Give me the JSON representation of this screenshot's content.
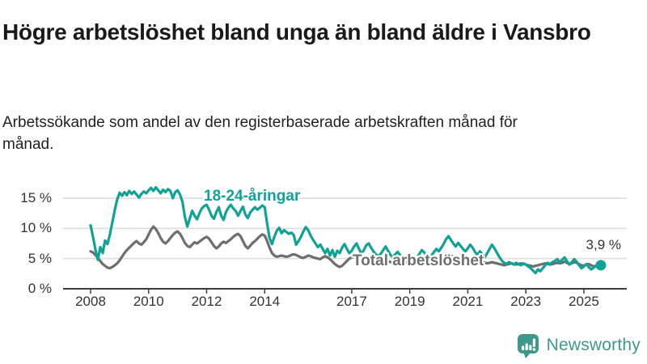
{
  "header": {
    "title": "Högre arbetslöshet bland unga än bland äldre i Vansbro",
    "subtitle": "Arbetssökande som andel av den registerbaserade arbetskraften månad för månad."
  },
  "annotation": {
    "latest_value_label": "3,9 %"
  },
  "branding": {
    "logo_text": "Newsworthy",
    "logo_icon": "bar-chart-speech-bubble-icon",
    "logo_color": "#3f988e"
  },
  "colors": {
    "young_series": "#10a296",
    "total_series": "#6e6e6e",
    "grid": "#dcdcdc",
    "axis": "#3c3c3c",
    "tick_text": "#333333",
    "title_text": "#1a1a1a"
  },
  "chart_data": {
    "type": "line",
    "frequency": "monthly",
    "x_start": "2008-01",
    "x_end": "2025-08",
    "unit": "%",
    "ylim": [
      0,
      17.5
    ],
    "grid": true,
    "yticks": [
      {
        "label": "0 %",
        "value": 0
      },
      {
        "label": "5 %",
        "value": 5
      },
      {
        "label": "10 %",
        "value": 10
      },
      {
        "label": "15 %",
        "value": 15
      }
    ],
    "xticks": [
      {
        "label": "2008",
        "year": 2008
      },
      {
        "label": "2010",
        "year": 2010
      },
      {
        "label": "2012",
        "year": 2012
      },
      {
        "label": "2014",
        "year": 2014
      },
      {
        "label": "2017",
        "year": 2017
      },
      {
        "label": "2019",
        "year": 2019
      },
      {
        "label": "2021",
        "year": 2021
      },
      {
        "label": "2023",
        "year": 2023
      },
      {
        "label": "2025",
        "year": 2025
      }
    ],
    "series": [
      {
        "name": "18-24-åringar",
        "color": "#10a296",
        "end_marker": true,
        "latest_value": 3.9,
        "values": [
          10.5,
          8.6,
          6.5,
          4.8,
          6.9,
          5.9,
          8.0,
          7.4,
          9.0,
          11.0,
          13.0,
          14.8,
          15.9,
          15.4,
          16.0,
          15.5,
          16.2,
          15.7,
          16.1,
          15.6,
          15.1,
          15.7,
          16.1,
          15.8,
          16.3,
          16.7,
          16.2,
          16.8,
          16.3,
          15.8,
          16.4,
          16.0,
          16.5,
          16.2,
          15.0,
          16.0,
          16.3,
          15.6,
          14.4,
          11.9,
          10.3,
          11.6,
          12.9,
          12.1,
          11.5,
          12.5,
          13.3,
          13.7,
          13.9,
          13.1,
          12.1,
          11.6,
          12.7,
          13.5,
          12.1,
          11.4,
          12.7,
          13.4,
          13.9,
          13.3,
          12.9,
          12.1,
          12.9,
          13.6,
          12.3,
          11.7,
          12.6,
          13.1,
          13.5,
          13.1,
          13.4,
          13.8,
          13.5,
          10.8,
          8.4,
          7.4,
          8.6,
          9.6,
          10.1,
          9.2,
          9.7,
          9.4,
          9.1,
          9.3,
          8.9,
          7.3,
          7.9,
          8.6,
          9.5,
          10.2,
          9.7,
          8.8,
          8.1,
          7.5,
          6.9,
          7.3,
          6.6,
          5.9,
          6.6,
          5.5,
          6.4,
          5.3,
          6.3,
          5.9,
          6.8,
          7.4,
          6.6,
          5.9,
          6.3,
          7.0,
          7.5,
          6.6,
          5.8,
          6.4,
          7.2,
          7.5,
          6.8,
          6.2,
          5.7,
          5.4,
          5.8,
          6.4,
          7.0,
          6.3,
          5.6,
          5.2,
          5.7,
          6.1,
          5.6,
          5.1,
          4.8,
          5.2,
          5.6,
          5.0,
          4.6,
          5.2,
          5.8,
          6.4,
          6.0,
          5.4,
          5.0,
          5.5,
          6.1,
          6.6,
          6.2,
          6.8,
          7.4,
          8.2,
          8.7,
          8.1,
          7.5,
          7.0,
          7.6,
          7.1,
          6.6,
          6.2,
          6.7,
          7.3,
          6.8,
          6.1,
          5.6,
          6.2,
          5.7,
          5.2,
          5.9,
          6.6,
          7.3,
          6.7,
          6.0,
          5.3,
          4.7,
          4.3,
          4.1,
          4.4,
          4.2,
          4.0,
          4.3,
          4.1,
          3.9,
          4.2,
          4.0,
          3.7,
          3.4,
          3.0,
          2.6,
          3.2,
          2.9,
          3.4,
          3.9,
          4.3,
          4.1,
          4.4,
          4.6,
          4.9,
          4.4,
          4.8,
          5.2,
          4.6,
          4.0,
          4.4,
          4.9,
          4.5,
          3.9,
          3.4,
          3.7,
          4.1,
          3.6,
          3.2,
          3.5,
          3.8,
          3.6,
          3.9
        ]
      },
      {
        "name": "Total arbetslöshet",
        "color": "#6e6e6e",
        "end_marker": false,
        "values": [
          6.2,
          6.0,
          5.6,
          5.1,
          4.6,
          4.1,
          3.8,
          3.5,
          3.4,
          3.6,
          3.9,
          4.2,
          4.7,
          5.3,
          5.9,
          6.4,
          6.8,
          7.2,
          7.6,
          7.9,
          7.5,
          7.3,
          7.7,
          8.2,
          9.0,
          9.8,
          10.3,
          9.9,
          9.2,
          8.4,
          7.8,
          7.5,
          7.9,
          8.4,
          8.9,
          9.3,
          9.5,
          9.1,
          8.4,
          7.6,
          7.1,
          6.9,
          7.3,
          7.7,
          7.5,
          7.8,
          8.1,
          8.4,
          8.6,
          8.3,
          7.7,
          7.1,
          6.7,
          7.0,
          7.5,
          7.8,
          7.6,
          7.9,
          8.2,
          8.6,
          8.9,
          9.1,
          8.7,
          7.9,
          7.1,
          6.7,
          7.1,
          7.6,
          7.9,
          8.3,
          8.7,
          9.0,
          8.8,
          7.9,
          6.8,
          5.9,
          5.5,
          5.3,
          5.4,
          5.5,
          5.4,
          5.3,
          5.4,
          5.6,
          5.7,
          5.6,
          5.4,
          5.2,
          5.1,
          5.3,
          5.5,
          5.4,
          5.2,
          5.1,
          5.0,
          4.9,
          5.2,
          5.4,
          5.2,
          4.9,
          4.5,
          4.1,
          3.8,
          3.6,
          3.8,
          4.2,
          4.6,
          5.0,
          5.2,
          5.3,
          5.1,
          4.9,
          4.7,
          4.8,
          5.0,
          4.9,
          4.7,
          4.6,
          4.7,
          4.8,
          4.9,
          5.0,
          4.8,
          4.6,
          4.4,
          4.5,
          4.6,
          4.5,
          4.3,
          4.2,
          4.3,
          4.4,
          4.5,
          4.4,
          4.2,
          4.1,
          4.2,
          4.4,
          4.5,
          4.4,
          4.3,
          4.4,
          4.6,
          4.7,
          4.8,
          4.9,
          5.1,
          5.4,
          5.6,
          5.5,
          5.3,
          5.2,
          5.1,
          5.0,
          4.9,
          5.0,
          5.1,
          5.0,
          4.9,
          4.7,
          4.5,
          4.6,
          4.5,
          4.3,
          4.2,
          4.3,
          4.4,
          4.3,
          4.2,
          4.1,
          4.0,
          3.9,
          4.0,
          4.1,
          4.2,
          4.1,
          4.0,
          4.1,
          4.2,
          4.1,
          4.0,
          3.9,
          3.8,
          3.7,
          3.8,
          3.9,
          4.0,
          4.1,
          4.2,
          4.1,
          4.0,
          4.1,
          4.2,
          4.3,
          4.2,
          4.3,
          4.5,
          4.3,
          4.1,
          4.2,
          4.4,
          4.3,
          4.1,
          3.9,
          3.8,
          4.0,
          4.1,
          3.9,
          3.7,
          3.8,
          3.9,
          3.8
        ]
      }
    ]
  }
}
